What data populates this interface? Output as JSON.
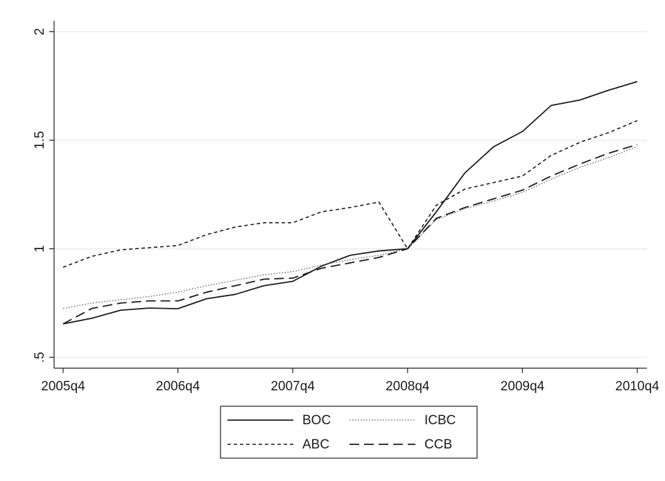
{
  "chart_data": {
    "type": "line",
    "categories": [
      "2005q4",
      null,
      null,
      null,
      "2006q4",
      null,
      null,
      null,
      "2007q4",
      null,
      null,
      null,
      "2008q4",
      null,
      null,
      null,
      "2009q4",
      null,
      null,
      null,
      "2010q4"
    ],
    "series": [
      {
        "name": "BOC",
        "color": "#1a1a1a",
        "line_style": "solid",
        "values": [
          0.654,
          0.68,
          0.717,
          0.727,
          0.724,
          0.77,
          0.79,
          0.83,
          0.85,
          0.92,
          0.97,
          0.99,
          1.0,
          1.17,
          1.35,
          1.47,
          1.54,
          1.66,
          1.685,
          1.73,
          1.77
        ]
      },
      {
        "name": "ICBC",
        "color": "#555555",
        "line_style": "dotted",
        "values": [
          0.725,
          0.75,
          0.765,
          0.78,
          0.8,
          0.83,
          0.855,
          0.88,
          0.895,
          0.925,
          0.95,
          0.97,
          1.0,
          1.135,
          1.185,
          1.22,
          1.26,
          1.32,
          1.375,
          1.42,
          1.47
        ]
      },
      {
        "name": "ABC",
        "color": "#1a1a1a",
        "line_style": "dashed",
        "values": [
          0.915,
          0.965,
          0.995,
          1.005,
          1.015,
          1.065,
          1.1,
          1.12,
          1.12,
          1.17,
          1.19,
          1.215,
          1.0,
          1.2,
          1.275,
          1.305,
          1.335,
          1.43,
          1.49,
          1.535,
          1.59
        ]
      },
      {
        "name": "CCB",
        "color": "#1a1a1a",
        "line_style": "longdash",
        "values": [
          0.654,
          0.725,
          0.75,
          0.76,
          0.76,
          0.8,
          0.83,
          0.86,
          0.865,
          0.91,
          0.935,
          0.96,
          1.0,
          1.14,
          1.19,
          1.23,
          1.27,
          1.335,
          1.39,
          1.44,
          1.48
        ]
      }
    ],
    "ylim": [
      0.45,
      2.05
    ],
    "yticks": [
      {
        "value": 0.5,
        "label": ".5"
      },
      1,
      1.5,
      2
    ],
    "grid": true,
    "legend": "bottom"
  }
}
